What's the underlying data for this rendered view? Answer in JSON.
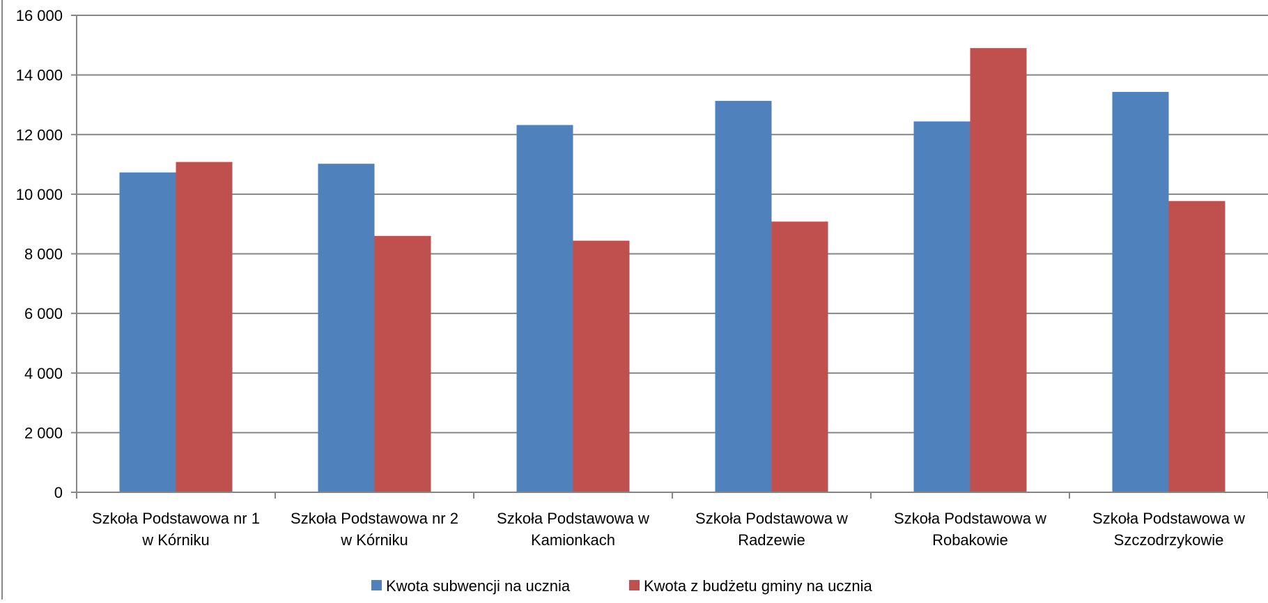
{
  "chart_data": {
    "type": "bar",
    "title": "",
    "xlabel": "",
    "ylabel": "",
    "ylim": [
      0,
      16000
    ],
    "yticks": [
      0,
      2000,
      4000,
      6000,
      8000,
      10000,
      12000,
      14000,
      16000
    ],
    "ytick_labels": [
      "0",
      "2 000",
      "4 000",
      "6 000",
      "8 000",
      "10 000",
      "12 000",
      "14 000",
      "16 000"
    ],
    "grid": true,
    "legend_position": "bottom",
    "categories": [
      [
        "Szkoła Podstawowa nr 1",
        "w Kórniku"
      ],
      [
        "Szkoła Podstawowa nr 2",
        "w Kórniku"
      ],
      [
        "Szkoła Podstawowa w",
        "Kamionkach"
      ],
      [
        "Szkoła Podstawowa w",
        "Radzewie"
      ],
      [
        "Szkoła Podstawowa w",
        "Robakowie"
      ],
      [
        "Szkoła Podstawowa w",
        "Szczodrzykowie"
      ]
    ],
    "series": [
      {
        "name": "Kwota subwencji na ucznia",
        "color": "#4F81BD",
        "values": [
          10730,
          11020,
          12320,
          13130,
          12440,
          13430
        ]
      },
      {
        "name": "Kwota z budżetu gminy na ucznia",
        "color": "#C0504D",
        "values": [
          11080,
          8600,
          8440,
          9080,
          14900,
          9770
        ]
      }
    ]
  }
}
